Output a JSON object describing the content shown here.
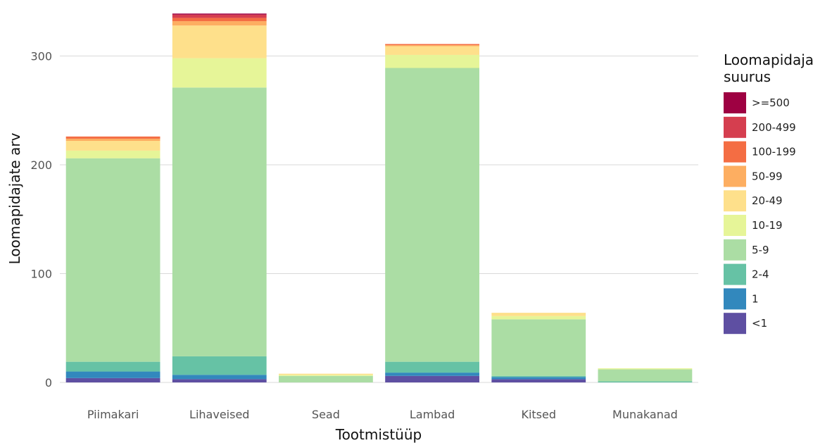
{
  "chart_data": {
    "type": "bar",
    "stacked": true,
    "title": "",
    "xlabel": "Tootmistüüp",
    "ylabel": "Loomapidajate arv",
    "ylim": [
      0,
      345
    ],
    "yticks": [
      0,
      100,
      200,
      300
    ],
    "grid": true,
    "legend_placement": "right",
    "legend_title_lines": [
      "Loomapidaja",
      "suurus"
    ],
    "categories": [
      "Piimakari",
      "Lihaveised",
      "Sead",
      "Lambad",
      "Kitsed",
      "Munakanad"
    ],
    "series": [
      {
        "name": "<1",
        "color": "#5E4FA2",
        "values": [
          4,
          3,
          0,
          6,
          3,
          0
        ]
      },
      {
        "name": "1",
        "color": "#3288BD",
        "values": [
          6,
          4,
          0,
          3,
          2,
          0
        ]
      },
      {
        "name": "2-4",
        "color": "#66C2A5",
        "values": [
          9,
          17,
          0,
          10,
          1,
          1
        ]
      },
      {
        "name": "5-9",
        "color": "#ABDDA4",
        "values": [
          187,
          247,
          6,
          270,
          52,
          11
        ]
      },
      {
        "name": "10-19",
        "color": "#E6F598",
        "values": [
          7,
          27,
          1,
          12,
          3,
          1
        ]
      },
      {
        "name": "20-49",
        "color": "#FEE08B",
        "values": [
          9,
          30,
          1,
          8,
          3,
          0
        ]
      },
      {
        "name": "50-99",
        "color": "#FDAE61",
        "values": [
          2,
          4,
          0,
          1,
          0,
          0
        ]
      },
      {
        "name": "100-199",
        "color": "#F46D43",
        "values": [
          2,
          3,
          0,
          1,
          0,
          0
        ]
      },
      {
        "name": "200-499",
        "color": "#D53E4F",
        "values": [
          0,
          3,
          0,
          0,
          0,
          0
        ]
      },
      {
        "name": ">=500",
        "color": "#9E0142",
        "values": [
          0,
          1,
          0,
          0,
          0,
          0
        ]
      }
    ]
  }
}
